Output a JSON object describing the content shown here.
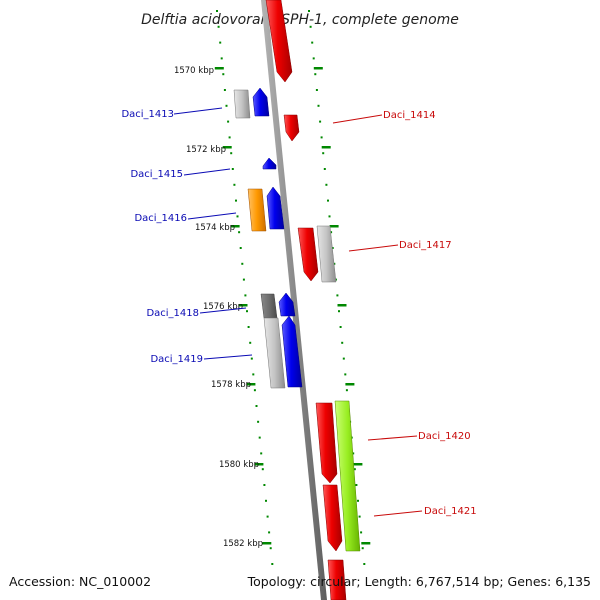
{
  "title": "Delftia acidovorans SPH-1, complete genome",
  "footer": {
    "accession": "Accession: NC_010002",
    "topology": "Topology: circular; Length: 6,767,514 bp; Genes: 6,135"
  },
  "scale_labels": [
    "1570 kbp",
    "1572 kbp",
    "1574 kbp",
    "1576 kbp",
    "1578 kbp",
    "1580 kbp",
    "1582 kbp"
  ],
  "genes_left": [
    {
      "label": "Daci_1413",
      "color": "#0a0ab4"
    },
    {
      "label": "Daci_1415",
      "color": "#0a0ab4"
    },
    {
      "label": "Daci_1416",
      "color": "#0a0ab4"
    },
    {
      "label": "Daci_1418",
      "color": "#0a0ab4"
    },
    {
      "label": "Daci_1419",
      "color": "#0a0ab4"
    }
  ],
  "genes_right": [
    {
      "label": "Daci_1414",
      "color": "#c80a0a"
    },
    {
      "label": "Daci_1417",
      "color": "#c80a0a"
    },
    {
      "label": "Daci_1420",
      "color": "#c80a0a"
    },
    {
      "label": "Daci_1421",
      "color": "#c80a0a"
    }
  ],
  "colors": {
    "backbone": "#8a8a8a",
    "forward_gene": "#ee0000",
    "reverse_gene": "#0000ee",
    "gray_feature": "#c4c4c4",
    "dark_gray_feature": "#6e6e6e",
    "orange_feature": "#ff9900",
    "lime_feature": "#99ee22",
    "tick_green": "#008800"
  }
}
